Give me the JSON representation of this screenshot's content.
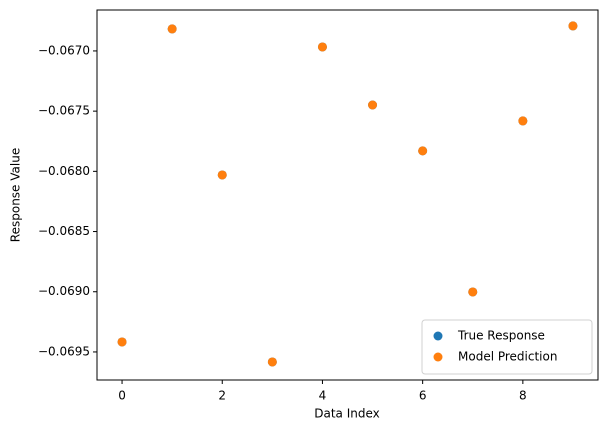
{
  "chart_data": {
    "type": "scatter",
    "x_label": "Data Index",
    "y_label": "Response Value",
    "x": [
      0,
      1,
      2,
      3,
      4,
      5,
      6,
      7,
      8,
      9
    ],
    "series": [
      {
        "name": "True Response",
        "color": "#1f77b4",
        "values": [
          -0.069417,
          -0.066817,
          -0.06803,
          -0.069583,
          -0.066967,
          -0.067449,
          -0.06783,
          -0.069002,
          -0.067581,
          -0.066792
        ]
      },
      {
        "name": "Model Prediction",
        "color": "#ff7f0e",
        "values": [
          -0.069417,
          -0.066817,
          -0.06803,
          -0.069583,
          -0.066967,
          -0.067449,
          -0.06783,
          -0.069002,
          -0.067581,
          -0.066792
        ]
      }
    ],
    "xlim": [
      -0.5,
      9.5
    ],
    "xticks": [
      0,
      2,
      4,
      6,
      8
    ],
    "ylim": [
      -0.069733,
      -0.06666
    ],
    "yticks": [
      {
        "value": -0.067,
        "label": "−0.0670"
      },
      {
        "value": -0.0675,
        "label": "−0.0675"
      },
      {
        "value": -0.068,
        "label": "−0.0680"
      },
      {
        "value": -0.0685,
        "label": "−0.0685"
      },
      {
        "value": -0.069,
        "label": "−0.0690"
      },
      {
        "value": -0.0695,
        "label": "−0.0695"
      }
    ],
    "legend": "lower right"
  }
}
